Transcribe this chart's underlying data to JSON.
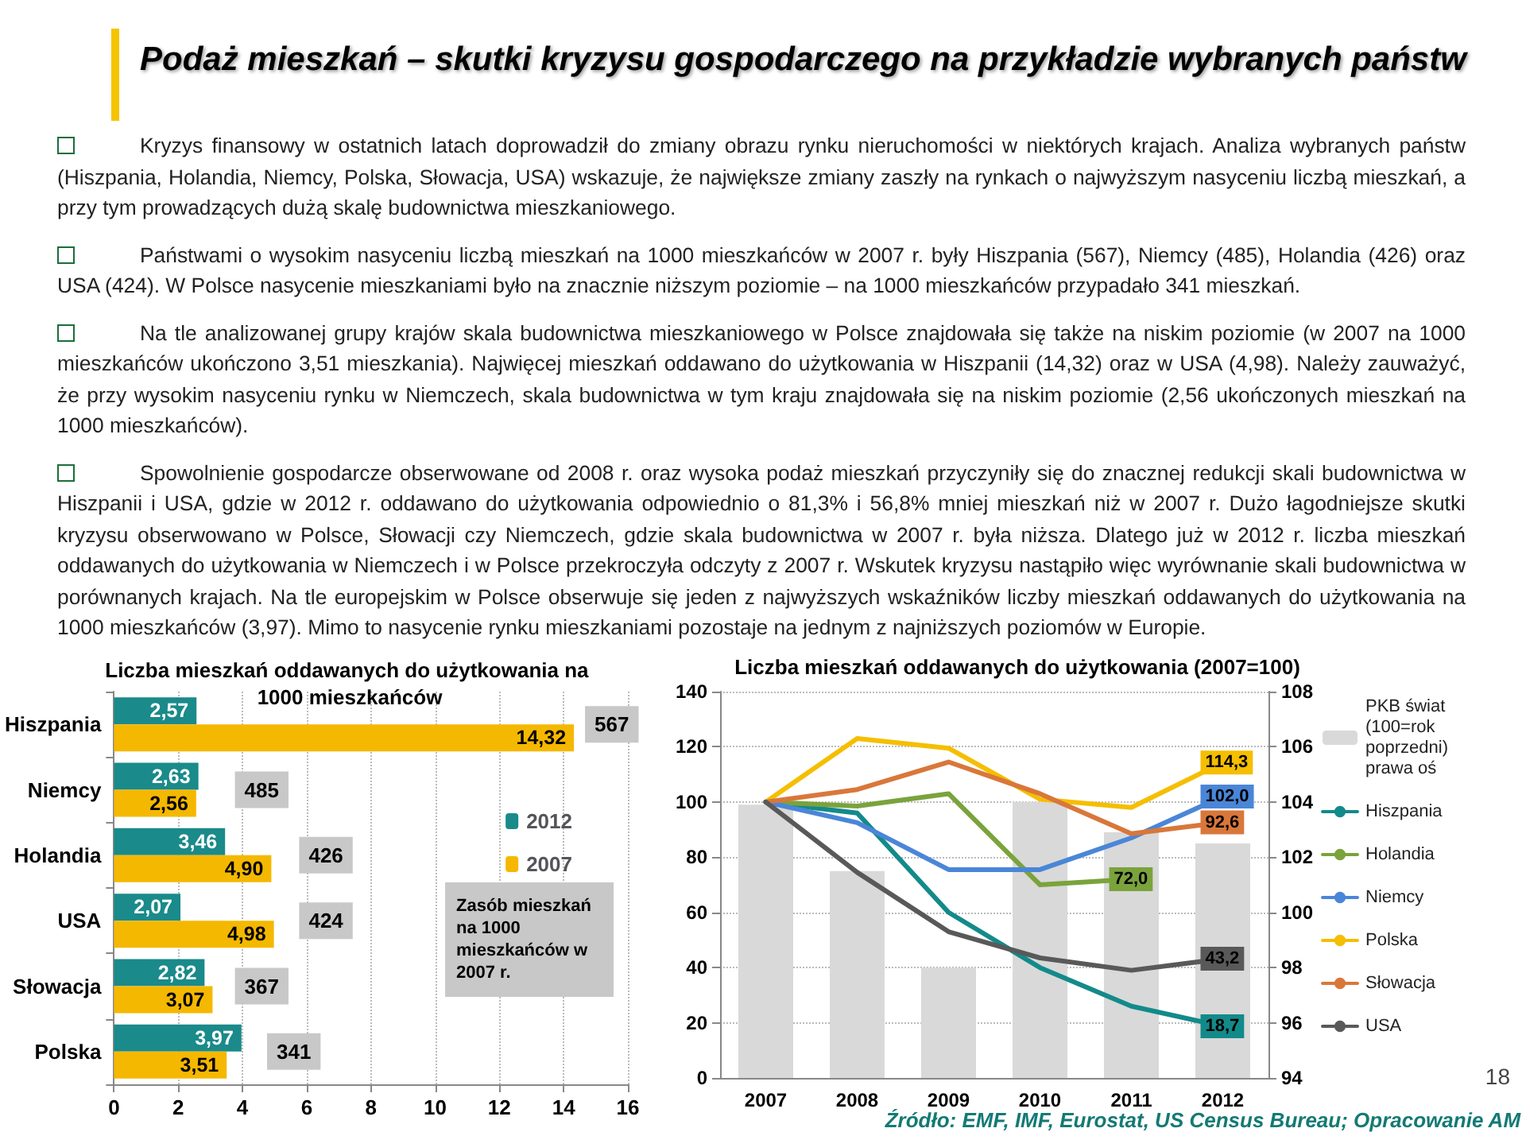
{
  "chart_data": [
    {
      "type": "other",
      "title": "Podaż mieszkań – skutki kryzysu gospodarczego na przykładzie wybranych państw",
      "annotations": [
        "Kryzys finansowy w ostatnich latach doprowadził do zmiany obrazu rynku nieruchomości w niektórych krajach. Analiza wybranych państw (Hiszpania, Holandia, Niemcy, Polska, Słowacja, USA) wskazuje, że największe zmiany zaszły na rynkach o najwyższym nasyceniu liczbą mieszkań, a przy tym prowadzących dużą skalę budownictwa mieszkaniowego.",
        "Państwami o wysokim nasyceniu liczbą mieszkań na 1000 mieszkańców w 2007 r. były Hiszpania (567), Niemcy (485), Holandia (426) oraz USA (424). W Polsce nasycenie mieszkaniami było na znacznie niższym poziomie – na 1000 mieszkańców przypadało 341 mieszkań.",
        "Na tle analizowanej grupy krajów skala budownictwa mieszkaniowego w Polsce znajdowała się także na niskim poziomie (w 2007 na 1000 mieszkańców ukończono 3,51 mieszkania). Najwięcej mieszkań oddawano do użytkowania w Hiszpanii (14,32) oraz w USA (4,98). Należy zauważyć, że przy wysokim nasyceniu rynku w Niemczech, skala budownictwa w tym kraju znajdowała się na niskim poziomie (2,56 ukończonych mieszkań na 1000 mieszkańców).",
        "Spowolnienie gospodarcze obserwowane od 2008 r. oraz wysoka podaż mieszkań przyczyniły się do znacznej redukcji skali budownictwa w Hiszpanii i USA, gdzie w 2012 r. oddawano do użytkowania odpowiednio o 81,3% i 56,8% mniej mieszkań niż w 2007 r. Dużo łagodniejsze skutki kryzysu obserwowano w Polsce, Słowacji czy Niemczech, gdzie skala budownictwa w 2007 r. była niższa. Dlatego już w 2012 r. liczba mieszkań oddawanych do użytkowania w Niemczech i w Polsce przekroczyła odczyty z 2007 r. Wskutek kryzysu nastąpiło więc wyrównanie skali budownictwa w porównanych krajach. Na tle europejskim w Polsce obserwuje się jeden z najwyższych wskaźników liczby mieszkań oddawanych do użytkowania na 1000 mieszkańców (3,97). Mimo to nasycenie rynku mieszkaniami pozostaje na jednym z najniższych poziomów w Europie."
      ]
    },
    {
      "type": "bar",
      "orientation": "horizontal",
      "title": "Liczba mieszkań oddawanych do użytkowania na 1000 mieszkańców",
      "categories": [
        "Hiszpania",
        "Niemcy",
        "Holandia",
        "USA",
        "Słowacja",
        "Polska"
      ],
      "series": [
        {
          "name": "2012",
          "color": "#1a8a8a",
          "values": [
            2.57,
            2.63,
            3.46,
            2.07,
            2.82,
            3.97
          ],
          "value_labels": [
            "2,57",
            "2,63",
            "3,46",
            "2,07",
            "2,82",
            "3,97"
          ]
        },
        {
          "name": "2007",
          "color": "#f5b800",
          "values": [
            14.32,
            2.56,
            4.9,
            4.98,
            3.07,
            3.51
          ],
          "value_labels": [
            "14,32",
            "2,56",
            "4,90",
            "4,98",
            "3,07",
            "3,51"
          ]
        }
      ],
      "xlim": [
        0,
        16
      ],
      "xticks": [
        0,
        2,
        4,
        6,
        8,
        10,
        12,
        14,
        16
      ],
      "grid": "x",
      "legend": "right",
      "annotations": [
        {
          "text": "567",
          "x": 15.5,
          "y": "Hiszpania"
        },
        {
          "text": "485",
          "x": 4.6,
          "y": "Niemcy"
        },
        {
          "text": "426",
          "x": 6.6,
          "y": "Holandia"
        },
        {
          "text": "424",
          "x": 6.6,
          "y": "USA"
        },
        {
          "text": "367",
          "x": 4.6,
          "y": "Słowacja"
        },
        {
          "text": "341",
          "x": 5.6,
          "y": "Polska"
        },
        "Zasób mieszkań na 1000 mieszkańców w 2007 r."
      ]
    },
    {
      "type": "line",
      "title": "Liczba mieszkań oddawanych do użytkowania (2007=100)",
      "categories": [
        "2007",
        "2008",
        "2009",
        "2010",
        "2011",
        "2012"
      ],
      "series": [
        {
          "name": "PKB świat (100=rok poprzedni) prawa oś",
          "type": "bar",
          "axis": "y2",
          "color": "#d9d9d9",
          "values": [
            103.9,
            101.5,
            98.0,
            104.0,
            102.9,
            102.5
          ]
        },
        {
          "name": "Hiszpania",
          "color": "#138a8a",
          "values": [
            100,
            96,
            60,
            40,
            26,
            18.7
          ],
          "value_labels": [
            null,
            null,
            null,
            null,
            null,
            "18,7"
          ]
        },
        {
          "name": "Holandia",
          "color": "#7aa33c",
          "values": [
            100,
            98.5,
            103,
            70,
            72.0,
            null
          ],
          "value_labels": [
            null,
            null,
            null,
            null,
            "72,0",
            null
          ]
        },
        {
          "name": "Niemcy",
          "color": "#4a86d8",
          "values": [
            100,
            92.5,
            75.5,
            75.5,
            87,
            102.0
          ],
          "value_labels": [
            null,
            null,
            null,
            null,
            null,
            "102,0"
          ]
        },
        {
          "name": "Polska",
          "color": "#f5be00",
          "values": [
            100,
            123,
            119.5,
            101,
            98,
            114.3
          ],
          "value_labels": [
            null,
            null,
            null,
            null,
            null,
            "114,3"
          ]
        },
        {
          "name": "Słowacja",
          "color": "#d9773a",
          "values": [
            100,
            104.5,
            114.5,
            103,
            88.5,
            92.6
          ],
          "value_labels": [
            null,
            null,
            null,
            null,
            null,
            "92,6"
          ]
        },
        {
          "name": "USA",
          "color": "#595959",
          "values": [
            100,
            74.5,
            53,
            43.5,
            39,
            43.2
          ],
          "value_labels": [
            null,
            null,
            null,
            null,
            null,
            "43,2"
          ]
        }
      ],
      "ylim": [
        0,
        140
      ],
      "yticks": [
        0,
        20,
        40,
        60,
        80,
        100,
        120,
        140
      ],
      "y2lim": [
        94,
        108
      ],
      "y2ticks": [
        94,
        96,
        98,
        100,
        102,
        104,
        106,
        108
      ],
      "grid": "y",
      "legend": "right",
      "marker": "none",
      "annotations": [
        "Źródło: EMF, IMF, Eurostat, US Census Bureau; Opracowanie AM",
        "18"
      ]
    }
  ]
}
